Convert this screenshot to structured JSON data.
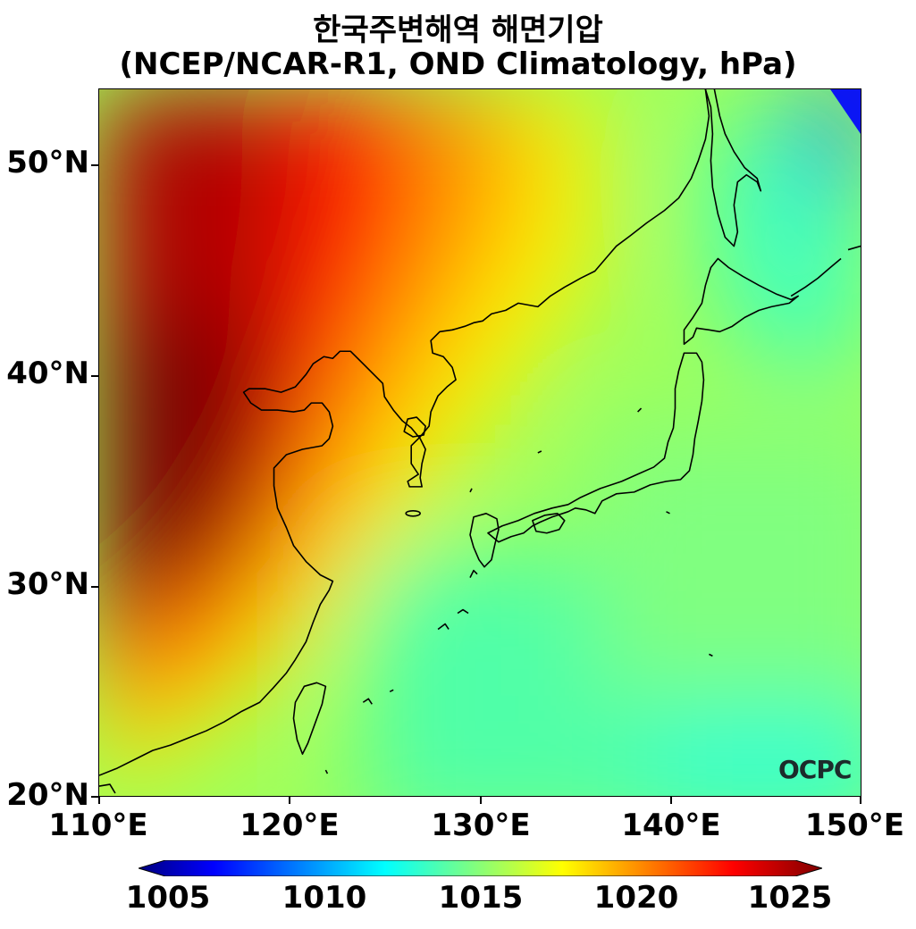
{
  "title": {
    "line1": "한국주변해역 해면기압",
    "line2": "(NCEP/NCAR-R1, OND Climatology, hPa)"
  },
  "axes": {
    "y_ticks": [
      "50°N",
      "40°N",
      "30°N",
      "20°N"
    ],
    "x_ticks": [
      "110°E",
      "120°E",
      "130°E",
      "140°E",
      "150°E"
    ]
  },
  "map_extent": {
    "lon": [
      110,
      150
    ],
    "lat": [
      20,
      53.5
    ]
  },
  "colorbar": {
    "ticks": [
      "1005",
      "1010",
      "1015",
      "1020",
      "1025"
    ],
    "range": [
      1005,
      1025
    ],
    "colormap": "jet",
    "colors": [
      "#00007f",
      "#0000ff",
      "#00ffff",
      "#ffff00",
      "#ff0000",
      "#7f0000"
    ]
  },
  "logo": "OCPC"
}
